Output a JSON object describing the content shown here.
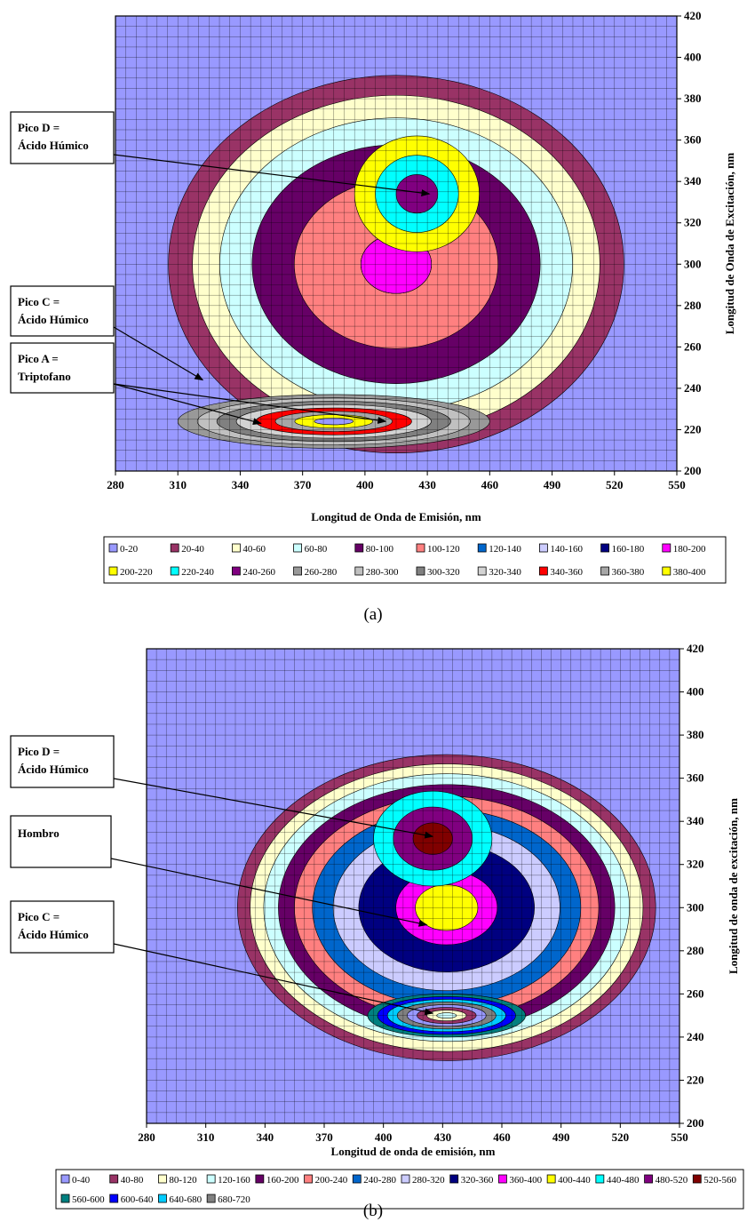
{
  "chart_data": [
    {
      "type": "heatmap",
      "subtype": "filled-contour",
      "caption": "(a)",
      "xlabel": "Longitud de Onda de Emisión, nm",
      "ylabel": "Longitud de Onda de Excitación, nm",
      "xlim": [
        280,
        550
      ],
      "ylim": [
        200,
        420
      ],
      "xticks": [
        "280",
        "310",
        "340",
        "370",
        "400",
        "430",
        "460",
        "490",
        "520",
        "550"
      ],
      "yticks": [
        "200",
        "220",
        "240",
        "260",
        "280",
        "300",
        "320",
        "340",
        "360",
        "380",
        "400",
        "420"
      ],
      "grid": true,
      "background_color": "#9999FF",
      "legend_position": "bottom",
      "legend": [
        {
          "label": "0-20",
          "color": "#9999FF"
        },
        {
          "label": "20-40",
          "color": "#993366"
        },
        {
          "label": "40-60",
          "color": "#FFFFCC"
        },
        {
          "label": "60-80",
          "color": "#CCFFFF"
        },
        {
          "label": "80-100",
          "color": "#660066"
        },
        {
          "label": "100-120",
          "color": "#FF8080"
        },
        {
          "label": "120-140",
          "color": "#0066CC"
        },
        {
          "label": "140-160",
          "color": "#CCCCFF"
        },
        {
          "label": "160-180",
          "color": "#000080"
        },
        {
          "label": "180-200",
          "color": "#FF00FF"
        },
        {
          "label": "200-220",
          "color": "#FFFF00"
        },
        {
          "label": "220-240",
          "color": "#00FFFF"
        },
        {
          "label": "240-260",
          "color": "#800080"
        },
        {
          "label": "260-280",
          "color": "#999999"
        },
        {
          "label": "280-300",
          "color": "#C0C0C0"
        },
        {
          "label": "300-320",
          "color": "#808080"
        },
        {
          "label": "320-340",
          "color": "#D3D3D3"
        },
        {
          "label": "340-360",
          "color": "#FF0000"
        },
        {
          "label": "360-380",
          "color": "#A6A6A6"
        },
        {
          "label": "380-400",
          "color": "#FFFF00"
        }
      ],
      "annotations": [
        {
          "id": "d",
          "lines": [
            "Pico D =",
            "Ácido Húmico"
          ],
          "target": {
            "x": 431,
            "y": 334
          }
        },
        {
          "id": "c",
          "lines": [
            "Pico C =",
            "Ácido Húmico"
          ],
          "target": {
            "x": 322,
            "y": 244
          }
        },
        {
          "id": "a",
          "lines": [
            "Pico A =",
            "Triptofano"
          ],
          "target": {
            "x": 350,
            "y": 223
          },
          "target2": {
            "x": 410,
            "y": 224
          }
        }
      ],
      "peaks": [
        {
          "cx": 415,
          "cy": 300,
          "rx": 120,
          "ry": 100,
          "amp": 120,
          "levels": [
            20,
            40,
            60,
            80,
            100,
            120,
            140,
            160,
            180
          ]
        },
        {
          "cx": 425,
          "cy": 334,
          "rx": 30,
          "ry": 28,
          "amp": 85
        },
        {
          "cx": 385,
          "cy": 224,
          "rx": 75,
          "ry": 13,
          "amp": 240
        }
      ]
    },
    {
      "type": "heatmap",
      "subtype": "filled-contour",
      "caption": "(b)",
      "xlabel": "Longitud de onda de emisión, nm",
      "ylabel": "Longitud de onda de excitación, nm",
      "xlim": [
        280,
        550
      ],
      "ylim": [
        200,
        420
      ],
      "xticks": [
        "280",
        "310",
        "340",
        "370",
        "400",
        "430",
        "460",
        "490",
        "520",
        "550"
      ],
      "yticks": [
        "200",
        "220",
        "240",
        "260",
        "280",
        "300",
        "320",
        "340",
        "360",
        "380",
        "400",
        "420"
      ],
      "grid": true,
      "background_color": "#9999FF",
      "legend_position": "bottom",
      "legend": [
        {
          "label": "0-40",
          "color": "#9999FF"
        },
        {
          "label": "40-80",
          "color": "#993366"
        },
        {
          "label": "80-120",
          "color": "#FFFFCC"
        },
        {
          "label": "120-160",
          "color": "#CCFFFF"
        },
        {
          "label": "160-200",
          "color": "#660066"
        },
        {
          "label": "200-240",
          "color": "#FF8080"
        },
        {
          "label": "240-280",
          "color": "#0066CC"
        },
        {
          "label": "280-320",
          "color": "#CCCCFF"
        },
        {
          "label": "320-360",
          "color": "#000080"
        },
        {
          "label": "360-400",
          "color": "#FF00FF"
        },
        {
          "label": "400-440",
          "color": "#FFFF00"
        },
        {
          "label": "440-480",
          "color": "#00FFFF"
        },
        {
          "label": "480-520",
          "color": "#800080"
        },
        {
          "label": "520-560",
          "color": "#800000"
        },
        {
          "label": "560-600",
          "color": "#008080"
        },
        {
          "label": "600-640",
          "color": "#0000FF"
        },
        {
          "label": "640-680",
          "color": "#00CCFF"
        },
        {
          "label": "680-720",
          "color": "#808080"
        }
      ],
      "annotations": [
        {
          "id": "d",
          "lines": [
            "Pico D =",
            "Ácido Húmico"
          ],
          "target": {
            "x": 425,
            "y": 333
          }
        },
        {
          "id": "h",
          "lines": [
            "Hombro"
          ],
          "target": {
            "x": 422,
            "y": 292
          }
        },
        {
          "id": "c",
          "lines": [
            "Pico C =",
            "Ácido Húmico"
          ],
          "target": {
            "x": 425,
            "y": 251
          }
        }
      ],
      "peaks": [
        {
          "cx": 432,
          "cy": 300,
          "rx": 112,
          "ry": 75,
          "amp": 380,
          "levels": [
            40,
            80,
            120,
            160,
            200,
            240,
            280,
            320,
            360,
            400
          ]
        },
        {
          "cx": 425,
          "cy": 332,
          "rx": 30,
          "ry": 22,
          "amp": 300
        },
        {
          "cx": 432,
          "cy": 250,
          "rx": 40,
          "ry": 10,
          "amp": 420
        }
      ]
    }
  ]
}
